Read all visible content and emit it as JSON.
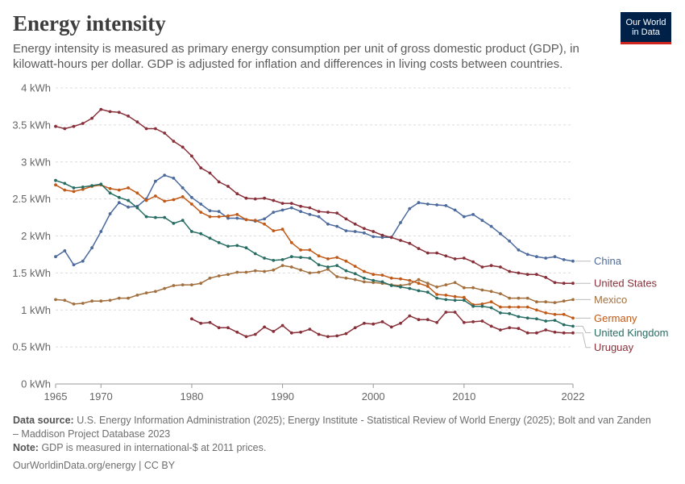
{
  "header": {
    "title": "Energy intensity",
    "subtitle": "Energy intensity is measured as primary energy consumption per unit of gross domestic product (GDP), in kilowatt-hours per dollar. GDP is adjusted for inflation and differences in living costs between countries.",
    "logo_line1": "Our World",
    "logo_line2": "in Data"
  },
  "footer": {
    "source_label": "Data source:",
    "source_text": "U.S. Energy Information Administration (2025); Energy Institute - Statistical Review of World Energy (2025); Bolt and van Zanden – Maddison Project Database 2023",
    "note_label": "Note:",
    "note_text": "GDP is measured in international-$ at 2011 prices.",
    "credit_link": "OurWorldinData.org/energy",
    "credit_license": "CC BY"
  },
  "chart_data": {
    "type": "line",
    "title": "Energy intensity",
    "ylabel": "",
    "xlabel": "",
    "xlim": [
      1965,
      2022
    ],
    "ylim": [
      0,
      4
    ],
    "x_ticks": [
      1965,
      1970,
      1980,
      1990,
      2000,
      2010,
      2022
    ],
    "y_ticks": [
      0,
      0.5,
      1,
      1.5,
      2,
      2.5,
      3,
      3.5,
      4
    ],
    "y_tick_labels": [
      "0 kWh",
      "0.5 kWh",
      "1 kWh",
      "1.5 kWh",
      "2 kWh",
      "2.5 kWh",
      "3 kWh",
      "3.5 kWh",
      "4 kWh"
    ],
    "grid": "horizontal dashed",
    "legend": "right, labels at line ends",
    "series": [
      {
        "name": "China",
        "color": "#4c6a9c",
        "start": 1965,
        "values": [
          1.72,
          1.8,
          1.61,
          1.66,
          1.84,
          2.06,
          2.3,
          2.45,
          2.39,
          2.4,
          2.5,
          2.74,
          2.82,
          2.78,
          2.65,
          2.52,
          2.43,
          2.34,
          2.33,
          2.24,
          2.24,
          2.22,
          2.2,
          2.23,
          2.32,
          2.35,
          2.38,
          2.33,
          2.29,
          2.26,
          2.16,
          2.13,
          2.07,
          2.06,
          2.04,
          1.99,
          1.98,
          1.98,
          2.18,
          2.37,
          2.45,
          2.43,
          2.42,
          2.41,
          2.35,
          2.26,
          2.29,
          2.21,
          2.13,
          2.03,
          1.93,
          1.81,
          1.75,
          1.72,
          1.7,
          1.72,
          1.68,
          1.66
        ]
      },
      {
        "name": "United States",
        "color": "#883039",
        "start": 1965,
        "values": [
          3.48,
          3.45,
          3.48,
          3.52,
          3.59,
          3.71,
          3.68,
          3.67,
          3.62,
          3.54,
          3.45,
          3.45,
          3.39,
          3.28,
          3.2,
          3.08,
          2.92,
          2.85,
          2.73,
          2.67,
          2.57,
          2.51,
          2.5,
          2.51,
          2.48,
          2.44,
          2.44,
          2.4,
          2.38,
          2.33,
          2.32,
          2.31,
          2.23,
          2.16,
          2.1,
          2.06,
          2.01,
          1.98,
          1.94,
          1.9,
          1.83,
          1.77,
          1.77,
          1.73,
          1.69,
          1.7,
          1.65,
          1.58,
          1.6,
          1.58,
          1.52,
          1.5,
          1.48,
          1.48,
          1.44,
          1.37,
          1.36,
          1.36
        ]
      },
      {
        "name": "Mexico",
        "color": "#a2703f",
        "start": 1965,
        "values": [
          1.14,
          1.13,
          1.08,
          1.09,
          1.12,
          1.12,
          1.13,
          1.16,
          1.16,
          1.2,
          1.23,
          1.25,
          1.29,
          1.33,
          1.34,
          1.34,
          1.36,
          1.43,
          1.46,
          1.48,
          1.51,
          1.51,
          1.53,
          1.52,
          1.54,
          1.6,
          1.58,
          1.54,
          1.5,
          1.51,
          1.55,
          1.45,
          1.43,
          1.41,
          1.38,
          1.37,
          1.36,
          1.34,
          1.33,
          1.35,
          1.41,
          1.36,
          1.31,
          1.34,
          1.37,
          1.3,
          1.3,
          1.27,
          1.25,
          1.22,
          1.16,
          1.16,
          1.16,
          1.11,
          1.11,
          1.1,
          1.12,
          1.14
        ]
      },
      {
        "name": "Germany",
        "color": "#c05917",
        "start": 1965,
        "values": [
          2.69,
          2.62,
          2.6,
          2.63,
          2.67,
          2.69,
          2.64,
          2.62,
          2.65,
          2.58,
          2.48,
          2.54,
          2.47,
          2.49,
          2.53,
          2.43,
          2.32,
          2.26,
          2.26,
          2.27,
          2.29,
          2.22,
          2.21,
          2.16,
          2.07,
          2.09,
          1.91,
          1.81,
          1.81,
          1.73,
          1.69,
          1.71,
          1.66,
          1.59,
          1.52,
          1.48,
          1.47,
          1.43,
          1.42,
          1.4,
          1.36,
          1.32,
          1.21,
          1.2,
          1.18,
          1.17,
          1.07,
          1.08,
          1.11,
          1.04,
          1.04,
          1.04,
          1.04,
          1.0,
          0.96,
          0.94,
          0.94,
          0.89
        ]
      },
      {
        "name": "United Kingdom",
        "color": "#286d63",
        "start": 1965,
        "values": [
          2.75,
          2.71,
          2.65,
          2.66,
          2.68,
          2.7,
          2.58,
          2.52,
          2.48,
          2.38,
          2.26,
          2.25,
          2.25,
          2.17,
          2.21,
          2.06,
          2.03,
          1.97,
          1.91,
          1.86,
          1.87,
          1.84,
          1.76,
          1.7,
          1.67,
          1.68,
          1.72,
          1.71,
          1.7,
          1.61,
          1.58,
          1.6,
          1.53,
          1.49,
          1.43,
          1.4,
          1.38,
          1.33,
          1.31,
          1.29,
          1.26,
          1.24,
          1.16,
          1.14,
          1.13,
          1.13,
          1.05,
          1.05,
          1.03,
          0.96,
          0.95,
          0.91,
          0.89,
          0.88,
          0.85,
          0.86,
          0.8,
          0.78
        ]
      },
      {
        "name": "Uruguay",
        "color": "#883039",
        "start": 1980,
        "values": [
          0.88,
          0.82,
          0.83,
          0.76,
          0.76,
          0.7,
          0.64,
          0.67,
          0.77,
          0.71,
          0.79,
          0.69,
          0.7,
          0.74,
          0.67,
          0.64,
          0.65,
          0.68,
          0.76,
          0.82,
          0.81,
          0.84,
          0.77,
          0.82,
          0.92,
          0.87,
          0.87,
          0.83,
          0.97,
          0.97,
          0.83,
          0.84,
          0.85,
          0.78,
          0.73,
          0.76,
          0.75,
          0.69,
          0.69,
          0.73,
          0.7,
          0.69,
          0.69
        ]
      }
    ]
  }
}
